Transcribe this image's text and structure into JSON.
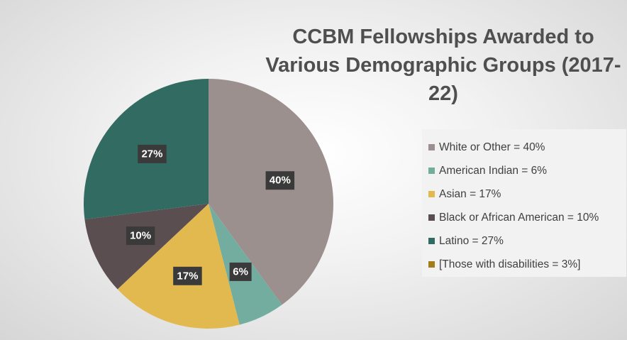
{
  "chart_data": {
    "type": "pie",
    "title_lines": [
      "CCBM Fellowships Awarded to",
      "Various Demographic Groups (2017-22)"
    ],
    "slices": [
      {
        "name": "White or Other",
        "value": 40,
        "label": "40%",
        "color": "#9b908e"
      },
      {
        "name": "American Indian",
        "value": 6,
        "label": "6%",
        "color": "#73ada0"
      },
      {
        "name": "Asian",
        "value": 17,
        "label": "17%",
        "color": "#e2b94f"
      },
      {
        "name": "Black or African American",
        "value": 10,
        "label": "10%",
        "color": "#5b4e51"
      },
      {
        "name": "Latino",
        "value": 27,
        "label": "27%",
        "color": "#326b61"
      }
    ],
    "legend": [
      {
        "text": "White or Other = 40%",
        "color": "#9b908e"
      },
      {
        "text": "American Indian = 6%",
        "color": "#73ada0"
      },
      {
        "text": "Asian = 17%",
        "color": "#e2b94f"
      },
      {
        "text": "Black or African American = 10%",
        "color": "#5b4e51"
      },
      {
        "text": "Latino = 27%",
        "color": "#326b61"
      },
      {
        "text": "[Those with disabilities = 3%]",
        "color": "#a37d1a"
      }
    ],
    "legend_position": "right",
    "start_angle_deg": 0,
    "direction": "clockwise"
  }
}
